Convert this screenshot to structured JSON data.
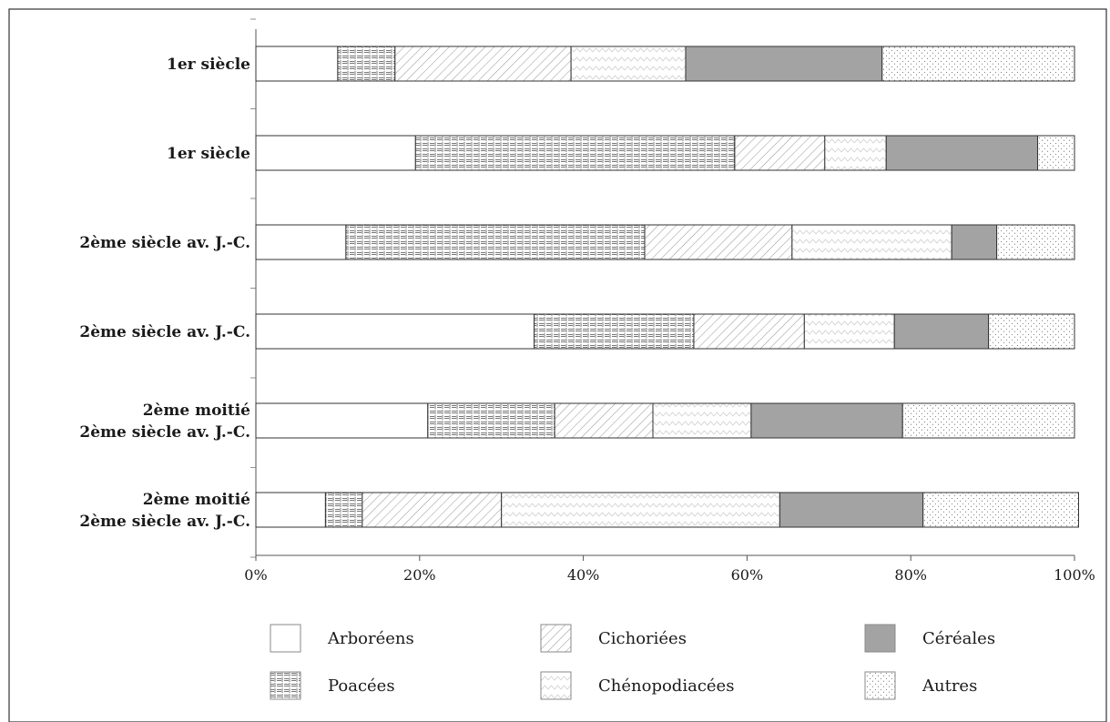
{
  "chart_data": {
    "type": "bar",
    "orientation": "horizontal",
    "stacked": true,
    "categories": [
      [
        "1er siècle"
      ],
      [
        "1er siècle"
      ],
      [
        "2ème siècle av. J.-C."
      ],
      [
        "2ème siècle av. J.-C."
      ],
      [
        "2ème moitié",
        "2ème siècle av. J.-C."
      ],
      [
        "2ème moitié",
        "2ème siècle av. J.-C."
      ]
    ],
    "series": [
      {
        "name": "Arboréens",
        "pattern": "blank",
        "values": [
          10,
          19.5,
          11,
          34,
          21,
          8.5
        ]
      },
      {
        "name": "Poacées",
        "pattern": "grid",
        "values": [
          7,
          39,
          36.5,
          19.5,
          15.5,
          4.5
        ]
      },
      {
        "name": "Cichoriées",
        "pattern": "hatch",
        "values": [
          21.5,
          11,
          18,
          13.5,
          12,
          17
        ]
      },
      {
        "name": "Chénopodiacées",
        "pattern": "zigzag",
        "values": [
          14,
          7.5,
          19.5,
          11,
          12,
          34
        ]
      },
      {
        "name": "Céréales",
        "pattern": "solid",
        "color": "#a3a3a3",
        "values": [
          24,
          18.5,
          5.5,
          11.5,
          18.5,
          17.5
        ]
      },
      {
        "name": "Autres",
        "pattern": "dots",
        "values": [
          23.5,
          4.5,
          9.5,
          10.5,
          21,
          19
        ]
      }
    ],
    "ticks": [
      "0%",
      "20%",
      "40%",
      "60%",
      "80%",
      "100%"
    ],
    "xlim": [
      0,
      100
    ],
    "title": "",
    "xlabel": "",
    "ylabel": "",
    "grid": false,
    "legend_position": "bottom"
  }
}
